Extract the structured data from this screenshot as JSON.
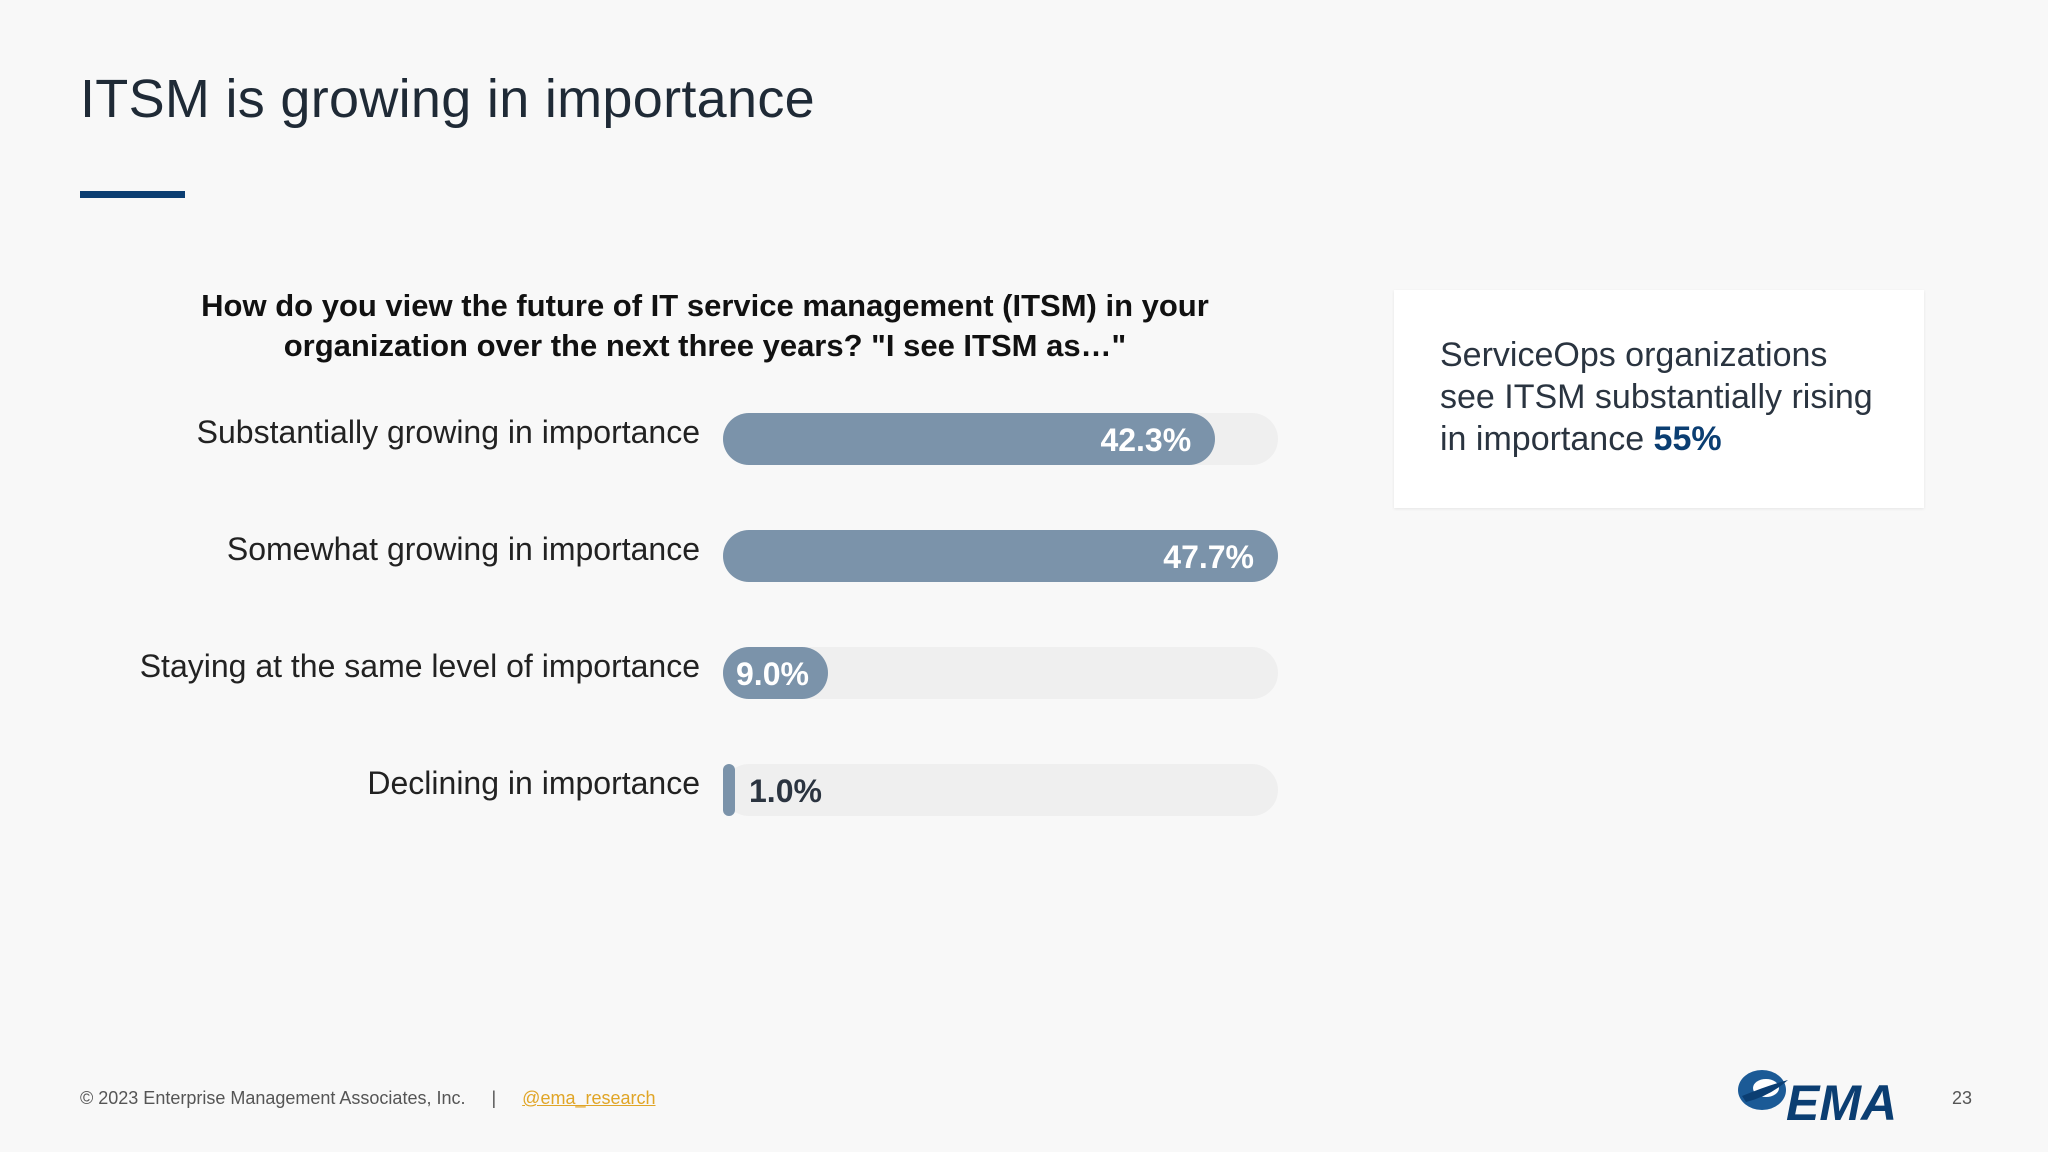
{
  "slide": {
    "title": "ITSM is growing in importance",
    "page_number": "23"
  },
  "chart_data": {
    "type": "bar",
    "orientation": "horizontal",
    "title": "How do you view the future of IT service management (ITSM) in your organization over the next three years? \"I see ITSM as…\"",
    "categories": [
      "Substantially growing in importance",
      "Somewhat growing in importance",
      "Staying at the same level of importance",
      "Declining in importance"
    ],
    "values": [
      42.3,
      47.7,
      9.0,
      1.0
    ],
    "value_labels": [
      "42.3%",
      "47.7%",
      "9.0%",
      "1.0%"
    ],
    "xlim": [
      0,
      47.7
    ],
    "grid": false,
    "legend": "none",
    "colors": {
      "bar": "#7b93aa",
      "track": "#efefef"
    }
  },
  "callout": {
    "text": "ServiceOps organizations see ITSM substantially rising in importance ",
    "highlight": "55%"
  },
  "footer": {
    "copyright": "© 2023 Enterprise Management Associates, Inc.",
    "separator": "|",
    "handle": "@ema_research"
  },
  "logo": {
    "text": "EMA",
    "icon": "ema-swoosh-logo"
  },
  "colors": {
    "accent": "#0b3e72",
    "link": "#e0a526"
  }
}
